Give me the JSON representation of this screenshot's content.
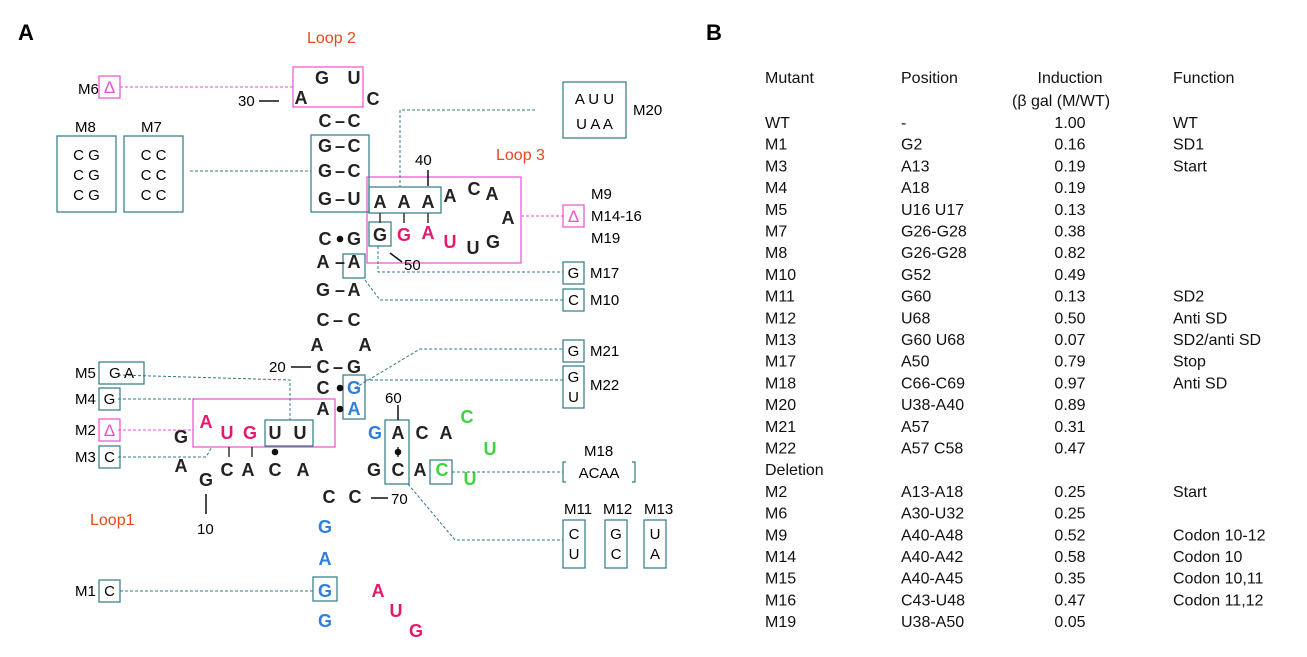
{
  "panels": {
    "a": "A",
    "b": "B"
  },
  "colors": {
    "black": "#222222",
    "pink": "#e5186f",
    "blue": "#2f7fdc",
    "green": "#3fd33f",
    "teal": "#2f7a85",
    "magenta": "#ea4fd0",
    "orange": "#e8481c"
  },
  "loops": {
    "loop1": "Loop1",
    "loop2": "Loop 2",
    "loop3": "Loop 3"
  },
  "position_numbers": {
    "n10": "10",
    "n20": "20",
    "n30": "30",
    "n40": "40",
    "n50": "50",
    "n60": "60",
    "n70": "70"
  },
  "bond": "–",
  "nucleotides": [
    {
      "t": "G",
      "c": "blue"
    },
    {
      "t": "G",
      "c": "blue"
    },
    {
      "t": "A",
      "c": "blue"
    },
    {
      "t": "G",
      "c": "blue"
    },
    {
      "t": "C",
      "c": "black"
    },
    {
      "t": "A",
      "c": "black"
    },
    {
      "t": "C",
      "c": "black"
    },
    {
      "t": "A",
      "c": "black"
    },
    {
      "t": "C",
      "c": "black"
    },
    {
      "t": "G",
      "c": "black"
    },
    {
      "t": "A",
      "c": "black"
    },
    {
      "t": "G",
      "c": "black"
    },
    {
      "t": "A",
      "c": "pink"
    },
    {
      "t": "U",
      "c": "pink"
    },
    {
      "t": "G",
      "c": "pink"
    },
    {
      "t": "U",
      "c": "black"
    },
    {
      "t": "U",
      "c": "black"
    },
    {
      "t": "A",
      "c": "black"
    },
    {
      "t": "C",
      "c": "black"
    },
    {
      "t": "C",
      "c": "black"
    },
    {
      "t": "A",
      "c": "black"
    },
    {
      "t": "C",
      "c": "black"
    },
    {
      "t": "G",
      "c": "black"
    },
    {
      "t": "A",
      "c": "black"
    },
    {
      "t": "C",
      "c": "black"
    },
    {
      "t": "G",
      "c": "black"
    },
    {
      "t": "G",
      "c": "black"
    },
    {
      "t": "G",
      "c": "black"
    },
    {
      "t": "C",
      "c": "black"
    },
    {
      "t": "A",
      "c": "black"
    },
    {
      "t": "G",
      "c": "black"
    },
    {
      "t": "U",
      "c": "black"
    },
    {
      "t": "C",
      "c": "black"
    },
    {
      "t": "C",
      "c": "black"
    },
    {
      "t": "C",
      "c": "black"
    },
    {
      "t": "C",
      "c": "black"
    },
    {
      "t": "U",
      "c": "black"
    },
    {
      "t": "A",
      "c": "black"
    },
    {
      "t": "A",
      "c": "black"
    },
    {
      "t": "A",
      "c": "black"
    },
    {
      "t": "A",
      "c": "black"
    },
    {
      "t": "C",
      "c": "black"
    },
    {
      "t": "A",
      "c": "black"
    },
    {
      "t": "A",
      "c": "black"
    },
    {
      "t": "G",
      "c": "black"
    },
    {
      "t": "U",
      "c": "black"
    },
    {
      "t": "U",
      "c": "pink"
    },
    {
      "t": "A",
      "c": "pink"
    },
    {
      "t": "G",
      "c": "pink"
    },
    {
      "t": "G",
      "c": "black"
    },
    {
      "t": "G",
      "c": "black"
    },
    {
      "t": "A",
      "c": "black"
    },
    {
      "t": "A",
      "c": "black"
    },
    {
      "t": "C",
      "c": "black"
    },
    {
      "t": "A",
      "c": "black"
    },
    {
      "t": "G",
      "c": "black"
    },
    {
      "t": "G",
      "c": "blue"
    },
    {
      "t": "A",
      "c": "blue"
    },
    {
      "t": "G",
      "c": "blue"
    },
    {
      "t": "A",
      "c": "black"
    },
    {
      "t": "C",
      "c": "black"
    },
    {
      "t": "A",
      "c": "black"
    },
    {
      "t": "C",
      "c": "green"
    },
    {
      "t": "U",
      "c": "green"
    },
    {
      "t": "U",
      "c": "green"
    },
    {
      "t": "C",
      "c": "green"
    },
    {
      "t": "A",
      "c": "black"
    },
    {
      "t": "C",
      "c": "black"
    },
    {
      "t": "G",
      "c": "black"
    },
    {
      "t": "C",
      "c": "black"
    },
    {
      "t": "A",
      "c": "pink"
    },
    {
      "t": "U",
      "c": "pink"
    },
    {
      "t": "G",
      "c": "pink"
    }
  ],
  "mutants_left": {
    "m6": {
      "label": "M6",
      "content": "Δ"
    },
    "m8": {
      "label": "M8",
      "rows": [
        "C G",
        "C G",
        "C G"
      ]
    },
    "m7": {
      "label": "M7",
      "rows": [
        "C C",
        "C C",
        "C C"
      ]
    },
    "m5": {
      "label": "M5",
      "content": "G A"
    },
    "m4": {
      "label": "M4",
      "content": "G"
    },
    "m2": {
      "label": "M2",
      "content": "Δ"
    },
    "m3": {
      "label": "M3",
      "content": "C"
    },
    "m1": {
      "label": "M1",
      "content": "C"
    }
  },
  "mutants_right": {
    "m20": {
      "label": "M20",
      "rows": [
        "A U U",
        "U A A"
      ]
    },
    "m9": {
      "label": "M9",
      "content": "Δ",
      "extra": [
        "M14-16",
        "M19"
      ]
    },
    "m17": {
      "label": "M17",
      "content": "G"
    },
    "m10": {
      "label": "M10",
      "content": "C"
    },
    "m21": {
      "label": "M21",
      "content": "G"
    },
    "m22": {
      "label": "M22",
      "rows": [
        "G",
        "U"
      ]
    },
    "m18": {
      "label": "M18",
      "content": "ACAA"
    },
    "m11": {
      "label": "M11",
      "rows": [
        "C",
        "U"
      ]
    },
    "m12": {
      "label": "M12",
      "rows": [
        "G",
        "C"
      ]
    },
    "m13": {
      "label": "M13",
      "rows": [
        "U",
        "A"
      ]
    }
  },
  "table": {
    "headers": [
      "Mutant",
      "Position",
      "Induction",
      "Function"
    ],
    "subheader": "(β gal (M/WT)",
    "rows": [
      [
        "WT",
        "-",
        "1.00",
        "WT"
      ],
      [
        "M1",
        "G2",
        "0.16",
        "SD1"
      ],
      [
        "M3",
        "A13",
        "0.19",
        "Start"
      ],
      [
        "M4",
        "A18",
        "0.19",
        ""
      ],
      [
        "M5",
        "U16 U17",
        "0.13",
        ""
      ],
      [
        "M7",
        "G26-G28",
        "0.38",
        ""
      ],
      [
        "M8",
        "G26-G28",
        "0.82",
        ""
      ],
      [
        "M10",
        "G52",
        "0.49",
        ""
      ],
      [
        "M11",
        "G60",
        "0.13",
        "SD2"
      ],
      [
        "M12",
        "U68",
        "0.50",
        "Anti SD"
      ],
      [
        "M13",
        "G60 U68",
        "0.07",
        "SD2/anti SD"
      ],
      [
        "M17",
        "A50",
        "0.79",
        "Stop"
      ],
      [
        "M18",
        "C66-C69",
        "0.97",
        "Anti SD"
      ],
      [
        "M20",
        "U38-A40",
        "0.89",
        ""
      ],
      [
        "M21",
        "A57",
        "0.31",
        ""
      ],
      [
        "M22",
        "A57 C58",
        "0.47",
        ""
      ]
    ],
    "deletion_label": "Deletion",
    "deletion_rows": [
      [
        "M2",
        "A13-A18",
        "0.25",
        "Start"
      ],
      [
        "M6",
        "A30-U32",
        "0.25",
        ""
      ],
      [
        "M9",
        "A40-A48",
        "0.52",
        "Codon 10-12"
      ],
      [
        "M14",
        "A40-A42",
        "0.58",
        "Codon 10"
      ],
      [
        "M15",
        "A40-A45",
        "0.35",
        "Codon 10,11"
      ],
      [
        "M16",
        "C43-U48",
        "0.47",
        "Codon 11,12"
      ],
      [
        "M19",
        "U38-A50",
        "0.05",
        ""
      ]
    ]
  }
}
